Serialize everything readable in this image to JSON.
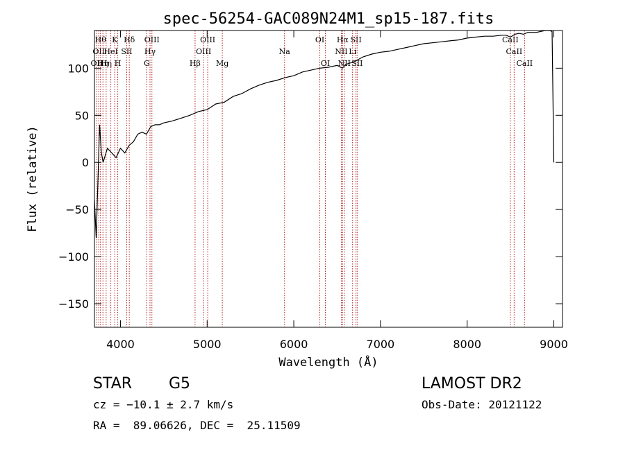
{
  "chart_data": {
    "type": "line",
    "title": "spec-56254-GAC089N24M1_sp15-187.fits",
    "xlabel": "Wavelength (Å)",
    "ylabel": "Flux (relative)",
    "xlim": [
      3700,
      9100
    ],
    "ylim": [
      -175,
      140
    ],
    "xticks": [
      4000,
      5000,
      6000,
      7000,
      8000,
      9000
    ],
    "yticks": [
      -150,
      -100,
      -50,
      0,
      50,
      100
    ],
    "grid": false,
    "line_color": "#000000",
    "marker_color": "#b22222",
    "series": [
      {
        "x": [
          3700,
          3720,
          3740,
          3760,
          3780,
          3800,
          3850,
          3900,
          3950,
          4000,
          4050,
          4100,
          4150,
          4200,
          4250,
          4300,
          4350,
          4400,
          4450,
          4500,
          4600,
          4700,
          4800,
          4900,
          5000,
          5100,
          5200,
          5300,
          5400,
          5500,
          5600,
          5700,
          5800,
          5900,
          6000,
          6100,
          6200,
          6300,
          6400,
          6500,
          6560,
          6600,
          6700,
          6800,
          6900,
          7000,
          7100,
          7200,
          7300,
          7400,
          7500,
          7600,
          7700,
          7800,
          7900,
          8000,
          8100,
          8200,
          8300,
          8400,
          8450,
          8500,
          8550,
          8600,
          8650,
          8700,
          8800,
          8900,
          8950,
          8980,
          9000
        ],
        "y": [
          -40,
          -80,
          -20,
          40,
          10,
          0,
          15,
          10,
          5,
          15,
          10,
          18,
          22,
          30,
          32,
          30,
          38,
          40,
          40,
          42,
          44,
          47,
          50,
          54,
          56,
          62,
          64,
          70,
          73,
          78,
          82,
          85,
          87,
          90,
          92,
          96,
          98,
          100,
          101,
          103,
          100,
          104,
          107,
          112,
          115,
          117,
          118,
          120,
          122,
          124,
          126,
          127,
          128,
          129,
          130,
          132,
          133,
          134,
          134,
          135,
          135,
          133,
          136,
          137,
          136,
          138,
          138,
          140,
          140,
          139,
          0
        ]
      }
    ],
    "line_markers": [
      {
        "x": 3727,
        "label": "OII",
        "row": 3
      },
      {
        "x": 3750,
        "label": "OII",
        "row": 2
      },
      {
        "x": 3770,
        "label": "Hθ",
        "row": 1
      },
      {
        "x": 3798,
        "label": "Hη",
        "row": 3
      },
      {
        "x": 3835,
        "label": "Hη",
        "row": 3
      },
      {
        "x": 3889,
        "label": "HeI",
        "row": 2
      },
      {
        "x": 3934,
        "label": "K",
        "row": 1
      },
      {
        "x": 3969,
        "label": "H",
        "row": 3
      },
      {
        "x": 4072,
        "label": "SII",
        "row": 2
      },
      {
        "x": 4102,
        "label": "Hδ",
        "row": 1
      },
      {
        "x": 4304,
        "label": "G",
        "row": 3
      },
      {
        "x": 4341,
        "label": "Hγ",
        "row": 2
      },
      {
        "x": 4363,
        "label": "OIII",
        "row": 1
      },
      {
        "x": 4861,
        "label": "Hβ",
        "row": 3
      },
      {
        "x": 4959,
        "label": "OIII",
        "row": 2
      },
      {
        "x": 5007,
        "label": "OIII",
        "row": 1
      },
      {
        "x": 5175,
        "label": "Mg",
        "row": 3
      },
      {
        "x": 5893,
        "label": "Na",
        "row": 2
      },
      {
        "x": 6300,
        "label": "OI",
        "row": 1
      },
      {
        "x": 6364,
        "label": "OI",
        "row": 3
      },
      {
        "x": 6548,
        "label": "NII",
        "row": 2
      },
      {
        "x": 6563,
        "label": "Hα",
        "row": 1
      },
      {
        "x": 6583,
        "label": "NII",
        "row": 3
      },
      {
        "x": 6678,
        "label": "Li",
        "row": 2
      },
      {
        "x": 6717,
        "label": "SII",
        "row": 1
      },
      {
        "x": 6731,
        "label": "SII",
        "row": 3
      },
      {
        "x": 8498,
        "label": "CaII",
        "row": 1
      },
      {
        "x": 8542,
        "label": "CaII",
        "row": 2
      },
      {
        "x": 8662,
        "label": "CaII",
        "row": 3
      }
    ]
  },
  "info": {
    "object_class": "STAR",
    "subclass": "G5",
    "survey": "LAMOST DR2",
    "cz": "cz = −10.1 ± 2.7 km/s",
    "obs_date": "Obs-Date: 20121122",
    "radec": "RA =  89.06626, DEC =  25.11509"
  }
}
